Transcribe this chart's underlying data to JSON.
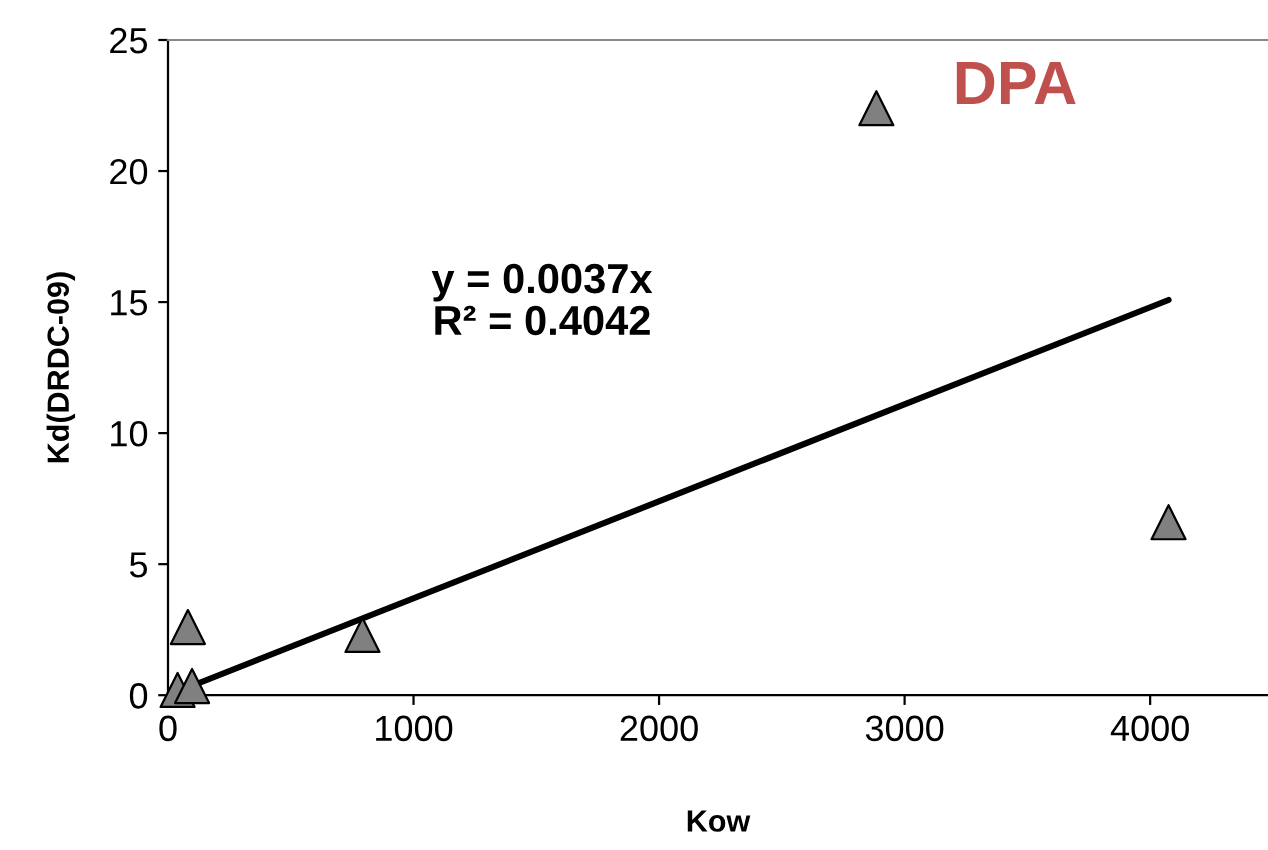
{
  "chart_data": {
    "type": "scatter",
    "xlabel": "Kow",
    "ylabel": "Kd(DRDC-09)",
    "x": [
      39,
      98,
      81,
      792,
      2885,
      4075
    ],
    "series": [
      {
        "color": "#808080",
        "marker": "triangle",
        "values": [
          0.2,
          0.35,
          2.6,
          2.3,
          22.4,
          6.6
        ]
      },
      {
        "type": "line",
        "color": "#000000",
        "marker": "none",
        "x": [
          39,
          4075
        ],
        "values": [
          0.14,
          15.08
        ]
      }
    ],
    "annotations": [
      "y = 0.0037x\nR² = 0.4042",
      "DPA"
    ],
    "xlim": [
      0,
      4480
    ],
    "xticks": [
      0,
      1000,
      2000,
      3000,
      4000
    ],
    "ylim": [
      0,
      25
    ],
    "yticks": [
      0,
      5,
      10,
      15,
      20,
      25
    ],
    "grid": false,
    "legend": false
  }
}
